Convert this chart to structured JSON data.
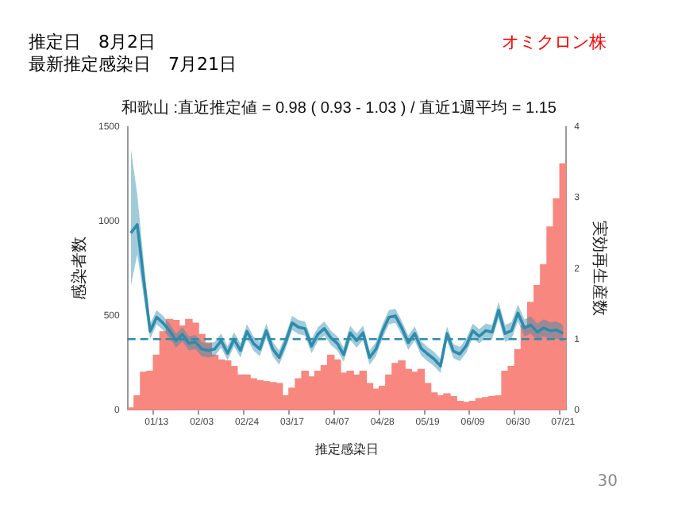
{
  "chart_data": {
    "type": "bar",
    "title": "和歌山 :直近推定値 = 0.98 ( 0.93 - 1.03 ) / 直近1週平均 = 1.15",
    "xlabel": "推定感染日",
    "ylabel": "感染者数",
    "y2label": "実効再生産数",
    "annotations": [
      "推定日　8月2日",
      "最新推定感染日　7月21日",
      "オミクロン株",
      "30"
    ],
    "categories": [
      null,
      null,
      null,
      null,
      "01/13",
      null,
      null,
      null,
      null,
      null,
      null,
      "02/03",
      null,
      null,
      null,
      null,
      null,
      null,
      "02/24",
      null,
      null,
      null,
      null,
      null,
      null,
      "03/17",
      null,
      null,
      null,
      null,
      null,
      null,
      "04/07",
      null,
      null,
      null,
      null,
      null,
      null,
      "04/28",
      null,
      null,
      null,
      null,
      null,
      null,
      "05/19",
      null,
      null,
      null,
      null,
      null,
      null,
      "06/09",
      null,
      null,
      null,
      null,
      null,
      null,
      "06/30",
      null,
      null,
      null,
      null,
      null,
      null,
      "07/21"
    ],
    "series": [
      {
        "axis": "y",
        "color": "#f8877f",
        "values": [
          10,
          75,
          200,
          205,
          290,
          415,
          480,
          475,
          445,
          480,
          460,
          400,
          355,
          290,
          265,
          260,
          230,
          185,
          185,
          165,
          155,
          150,
          145,
          140,
          75,
          115,
          165,
          205,
          175,
          205,
          235,
          290,
          265,
          195,
          205,
          185,
          205,
          140,
          110,
          125,
          185,
          246,
          260,
          215,
          200,
          215,
          140,
          90,
          75,
          85,
          70,
          45,
          40,
          45,
          60,
          65,
          70,
          75,
          205,
          230,
          320,
          445,
          570,
          660,
          770,
          970,
          1120,
          1305
        ]
      },
      {
        "type": "line",
        "axis": "y2",
        "color": "#2e8bad",
        "values": [
          2.5,
          2.62,
          1.84,
          1.11,
          1.31,
          1.23,
          1.12,
          0.98,
          1.07,
          0.94,
          0.96,
          0.86,
          0.84,
          0.86,
          0.98,
          0.8,
          1.0,
          0.84,
          1.11,
          0.94,
          0.86,
          1.12,
          0.86,
          0.74,
          0.96,
          1.23,
          1.17,
          1.15,
          0.9,
          1.07,
          1.15,
          1.02,
          0.94,
          0.78,
          1.09,
          0.98,
          1.09,
          0.74,
          0.86,
          1.11,
          1.31,
          1.33,
          1.16,
          0.95,
          1.08,
          0.87,
          0.79,
          0.72,
          0.62,
          1.08,
          0.83,
          0.79,
          0.91,
          1.12,
          1.04,
          1.12,
          1.1,
          1.41,
          1.08,
          1.12,
          1.37,
          1.16,
          1.2,
          1.1,
          1.16,
          1.12,
          1.13,
          1.08
        ],
        "lower": [
          1.75,
          2.2,
          1.6,
          1.0,
          1.21,
          1.13,
          1.02,
          0.88,
          0.97,
          0.84,
          0.86,
          0.76,
          0.74,
          0.76,
          0.88,
          0.7,
          0.9,
          0.74,
          1.01,
          0.84,
          0.76,
          1.02,
          0.76,
          0.64,
          0.86,
          1.13,
          1.07,
          1.05,
          0.8,
          0.97,
          1.05,
          0.92,
          0.84,
          0.68,
          0.99,
          0.88,
          0.99,
          0.64,
          0.76,
          1.01,
          1.21,
          1.23,
          1.06,
          0.85,
          0.98,
          0.77,
          0.69,
          0.62,
          0.52,
          0.98,
          0.73,
          0.69,
          0.81,
          1.02,
          0.94,
          1.02,
          1.0,
          1.29,
          0.96,
          1.0,
          1.25,
          1.04,
          1.08,
          0.98,
          1.04,
          1.0,
          1.01,
          0.96
        ],
        "upper": [
          3.7,
          3.05,
          2.1,
          1.22,
          1.41,
          1.33,
          1.22,
          1.08,
          1.17,
          1.04,
          1.06,
          0.96,
          0.94,
          0.96,
          1.08,
          0.9,
          1.1,
          0.94,
          1.21,
          1.04,
          0.96,
          1.22,
          0.96,
          0.84,
          1.06,
          1.33,
          1.27,
          1.25,
          1.0,
          1.17,
          1.25,
          1.12,
          1.04,
          0.88,
          1.19,
          1.08,
          1.19,
          0.84,
          0.96,
          1.21,
          1.41,
          1.43,
          1.26,
          1.05,
          1.18,
          0.97,
          0.89,
          0.82,
          0.72,
          1.18,
          0.93,
          0.89,
          1.01,
          1.22,
          1.14,
          1.22,
          1.2,
          1.53,
          1.2,
          1.24,
          1.49,
          1.28,
          1.32,
          1.22,
          1.28,
          1.24,
          1.25,
          1.2
        ]
      }
    ],
    "ylim": [
      0,
      1500
    ],
    "yticks": [
      0,
      500,
      1000,
      1500
    ],
    "y2lim": [
      0,
      4
    ],
    "y2ticks": [
      0,
      1,
      2,
      3,
      4
    ],
    "ref_lines": [
      {
        "axis": "y2",
        "value": 1,
        "color": "#2e8bad",
        "line_style": "dashed"
      }
    ],
    "grid": false,
    "legend": false
  }
}
